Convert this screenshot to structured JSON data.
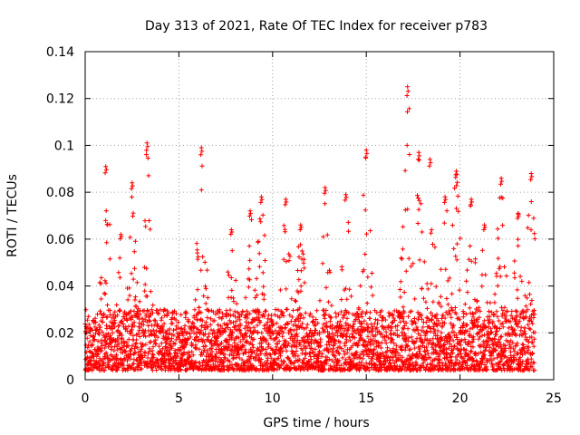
{
  "chart_data": {
    "type": "scatter",
    "title": "Day 313 of 2021, Rate Of TEC Index for receiver p783",
    "xlabel": "GPS time / hours",
    "ylabel": "ROTI / TECUs",
    "xlim": [
      0,
      25
    ],
    "ylim": [
      0,
      0.14
    ],
    "xticks": [
      0,
      5,
      10,
      15,
      20,
      25
    ],
    "xtick_labels": [
      "0",
      "5",
      "10",
      "15",
      "20",
      "25"
    ],
    "yticks": [
      0,
      0.02,
      0.04,
      0.06,
      0.08,
      0.1,
      0.12,
      0.14
    ],
    "ytick_labels": [
      "0",
      "0.02",
      "0.04",
      "0.06",
      "0.08",
      "0.1",
      "0.12",
      "0.14"
    ],
    "grid": true,
    "marker": "+",
    "series": [
      {
        "name": "ROTI",
        "color": "#ff0000",
        "x_range": [
          0.0,
          24.0
        ],
        "baseline_range": [
          0.004,
          0.03
        ],
        "peaks": [
          {
            "x": 1.1,
            "y": 0.091
          },
          {
            "x": 1.9,
            "y": 0.062
          },
          {
            "x": 2.5,
            "y": 0.084
          },
          {
            "x": 3.3,
            "y": 0.101
          },
          {
            "x": 6.2,
            "y": 0.099
          },
          {
            "x": 7.8,
            "y": 0.064
          },
          {
            "x": 8.8,
            "y": 0.072
          },
          {
            "x": 9.4,
            "y": 0.078
          },
          {
            "x": 10.7,
            "y": 0.077
          },
          {
            "x": 11.5,
            "y": 0.066
          },
          {
            "x": 12.8,
            "y": 0.082
          },
          {
            "x": 13.9,
            "y": 0.079
          },
          {
            "x": 15.0,
            "y": 0.098
          },
          {
            "x": 17.2,
            "y": 0.125
          },
          {
            "x": 17.8,
            "y": 0.097
          },
          {
            "x": 18.4,
            "y": 0.094
          },
          {
            "x": 19.2,
            "y": 0.078
          },
          {
            "x": 19.8,
            "y": 0.089
          },
          {
            "x": 20.6,
            "y": 0.077
          },
          {
            "x": 21.3,
            "y": 0.066
          },
          {
            "x": 22.2,
            "y": 0.086
          },
          {
            "x": 23.1,
            "y": 0.071
          },
          {
            "x": 23.8,
            "y": 0.088
          }
        ]
      }
    ]
  }
}
